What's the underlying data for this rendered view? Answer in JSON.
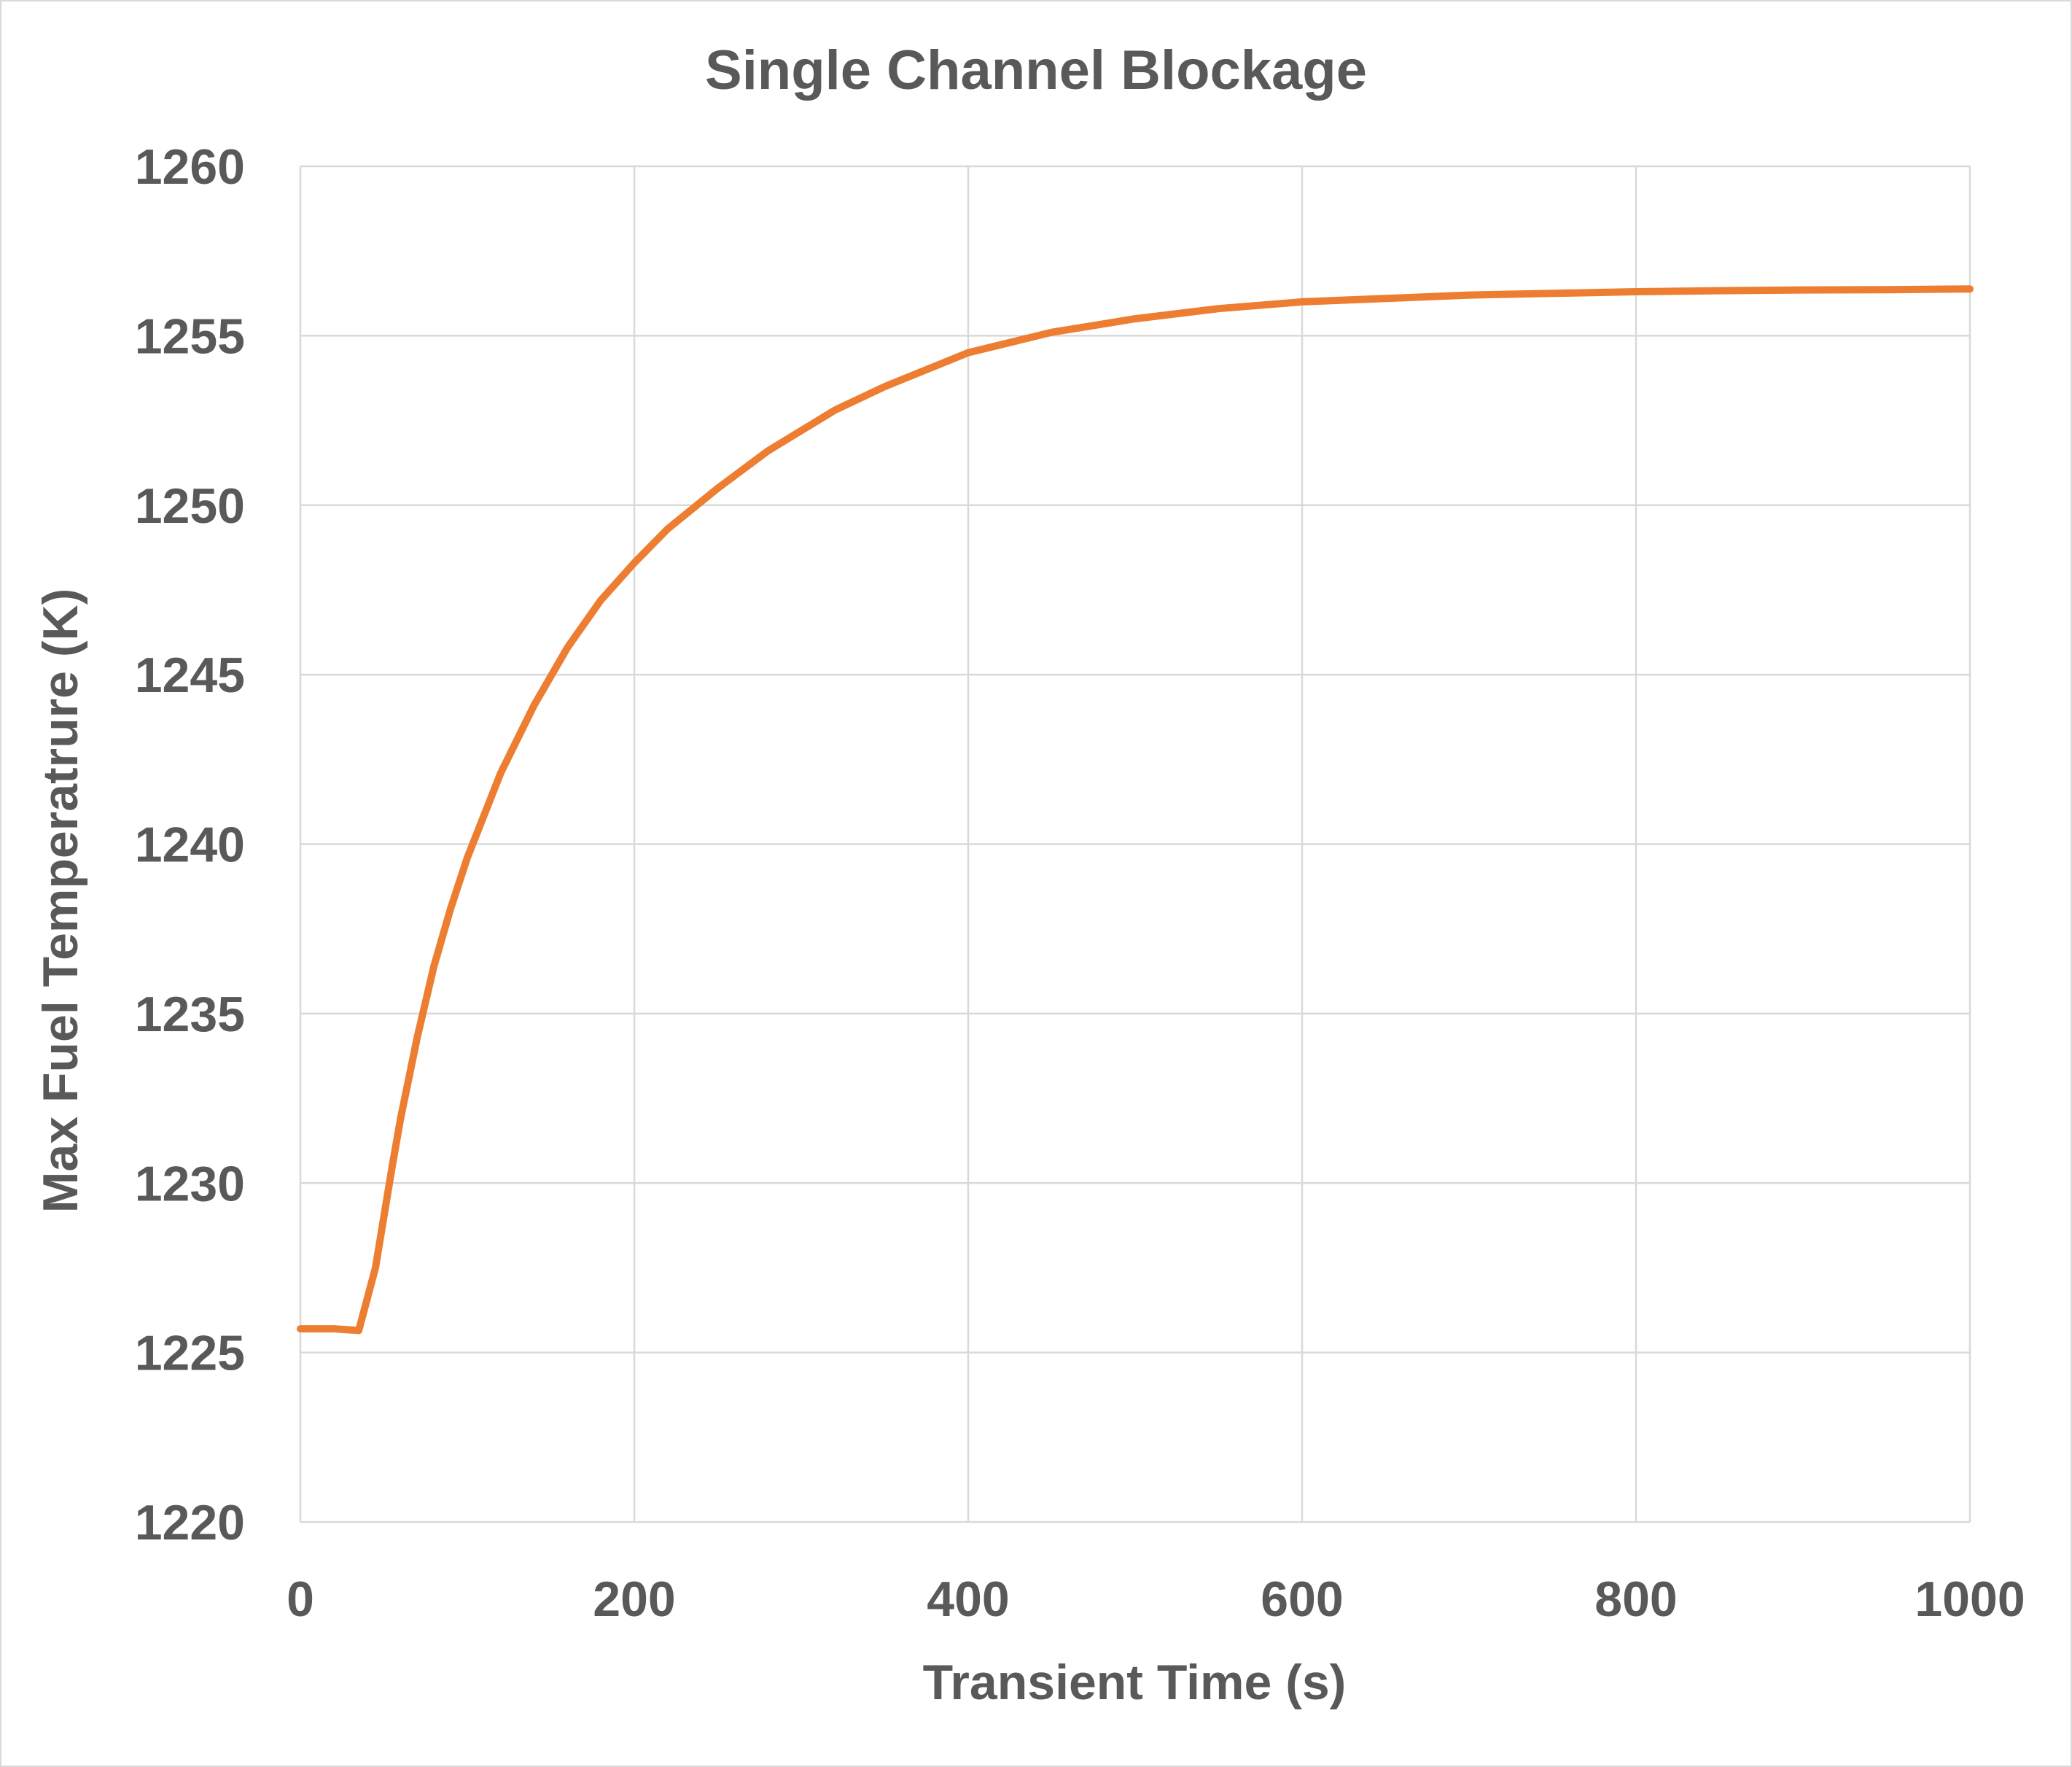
{
  "chart_data": {
    "type": "line",
    "title": "Single Channel Blockage",
    "xlabel": "Transient Time (s)",
    "ylabel": "Max Fuel Temperatrure (K)",
    "xlim": [
      0,
      1000
    ],
    "ylim": [
      1220,
      1260
    ],
    "xticks": [
      0,
      200,
      400,
      600,
      800,
      1000
    ],
    "yticks": [
      1220,
      1225,
      1230,
      1235,
      1240,
      1245,
      1250,
      1255,
      1260
    ],
    "grid": true,
    "legend": "none",
    "series": [
      {
        "color": "#ED7D31",
        "points": [
          [
            0,
            1225.7
          ],
          [
            20,
            1225.7
          ],
          [
            35,
            1225.65
          ],
          [
            45,
            1227.5
          ],
          [
            50,
            1229
          ],
          [
            55,
            1230.5
          ],
          [
            60,
            1231.9
          ],
          [
            70,
            1234.3
          ],
          [
            80,
            1236.4
          ],
          [
            90,
            1238.1
          ],
          [
            100,
            1239.6
          ],
          [
            120,
            1242.1
          ],
          [
            140,
            1244.1
          ],
          [
            160,
            1245.8
          ],
          [
            180,
            1247.2
          ],
          [
            200,
            1248.3
          ],
          [
            220,
            1249.3
          ],
          [
            250,
            1250.5
          ],
          [
            280,
            1251.6
          ],
          [
            300,
            1252.2
          ],
          [
            320,
            1252.8
          ],
          [
            350,
            1253.5
          ],
          [
            380,
            1254.1
          ],
          [
            400,
            1254.5
          ],
          [
            450,
            1255.1
          ],
          [
            500,
            1255.5
          ],
          [
            550,
            1255.8
          ],
          [
            600,
            1256.0
          ],
          [
            650,
            1256.1
          ],
          [
            700,
            1256.2
          ],
          [
            750,
            1256.25
          ],
          [
            800,
            1256.3
          ],
          [
            850,
            1256.33
          ],
          [
            900,
            1256.35
          ],
          [
            950,
            1256.36
          ],
          [
            1000,
            1256.38
          ]
        ]
      }
    ]
  }
}
